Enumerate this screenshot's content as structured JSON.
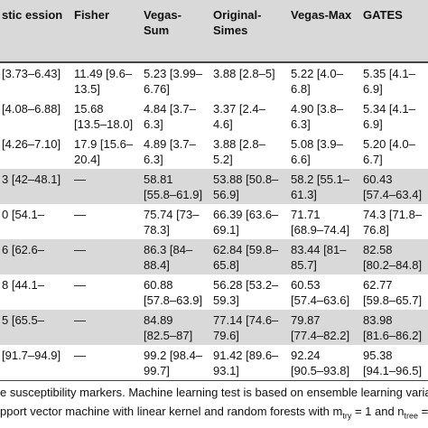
{
  "table": {
    "header": [
      "stic ession",
      "Fisher",
      "Vegas-Sum",
      "Original-Simes",
      "Vegas-Max",
      "GATES"
    ],
    "rows": [
      [
        "[3.73–6.43]",
        "11.49 [9.6–13.5]",
        "5.23 [3.99–6.76]",
        "3.88 [2.8–5]",
        "5.22 [4.0–6.8]",
        "5.35 [4.1–6.9]"
      ],
      [
        "[4.08–6.88]",
        "15.68 [13.5–18.0]",
        "4.84 [3.7–6.3]",
        "3.37 [2.4–4.6]",
        "4.90 [3.8–6.3]",
        "5.34 [4.1–6.9]"
      ],
      [
        "[4.26–7.10]",
        "17.9 [15.6–20.4]",
        "4.89 [3.7–6.3]",
        "3.88 [2.8–5.2]",
        "5.08 [3.9–6.6]",
        "5.20 [4.0–6.7]"
      ],
      [
        "3 [42–48.1]",
        "—",
        "58.81 [55.8–61.9]",
        "53.88 [50.8–56.9]",
        "58.2 [55.1–61.3]",
        "60.43 [57.4–63.4]"
      ],
      [
        "0 [54.1–",
        "—",
        "75.74 [73–78.3]",
        "66.39 [63.6–69.1]",
        "71.71 [68.9–74.4]",
        "74.3 [71.8–76.8]"
      ],
      [
        "6 [62.6–",
        "—",
        "86.3 [84–88.4]",
        "62.84 [59.8–65.8]",
        "83.44 [81–85.7]",
        "82.58 [80.2–84.8]"
      ],
      [
        "8 [44.1–",
        "—",
        "60.88 [57.8–63.9]",
        "56.28 [53.2–59.3]",
        "60.53 [57.4–63.6]",
        "62.77 [59.8–65.7]"
      ],
      [
        "5 [65.5–",
        "—",
        "84.89 [82.5–87]",
        "77.14 [74.6–79.6]",
        "79.87 [77.4–82.2]",
        "83.98 [81.6–86.2]"
      ],
      [
        "[91.7–94.9]",
        "—",
        "99.2 [98.4–99.7]",
        "91.42 [89.6–93.1]",
        "92.24 [90.5–93.8]",
        "95.38 [94.1–96.5]"
      ]
    ]
  },
  "footer": {
    "line1": "e susceptibility markers. Machine learning test is based on ensemble learning variati",
    "line2": [
      "pport vector machine with linear kernel and random forests with m",
      "try",
      " = 1 and n",
      "tree",
      " ="
    ]
  }
}
